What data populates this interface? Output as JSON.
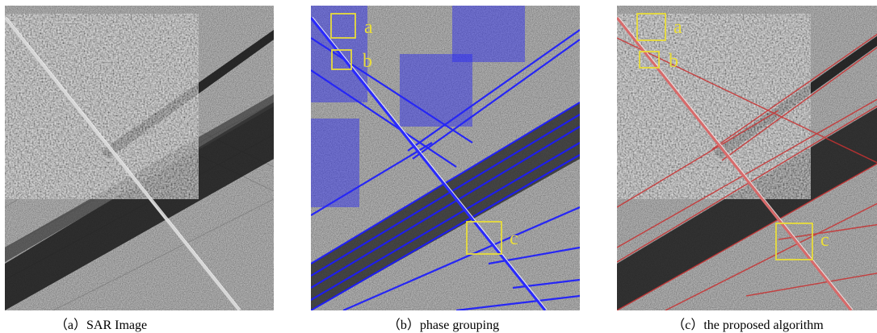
{
  "figure": {
    "panels": [
      {
        "id": "a",
        "caption": "（a）SAR Image",
        "overlay": "none",
        "boxes": []
      },
      {
        "id": "b",
        "caption": "（b）phase grouping",
        "overlay": "blue line segments",
        "boxes": [
          {
            "label": "a"
          },
          {
            "label": "b"
          },
          {
            "label": "c"
          }
        ]
      },
      {
        "id": "c",
        "caption": "（c）the proposed algorithm",
        "overlay": "red line segments",
        "boxes": [
          {
            "label": "a"
          },
          {
            "label": "b"
          },
          {
            "label": "c"
          }
        ]
      }
    ],
    "colors": {
      "box": "#e8dc3a",
      "phase_grouping_lines": "#1a1aff",
      "proposed_lines": "#c83232"
    }
  }
}
